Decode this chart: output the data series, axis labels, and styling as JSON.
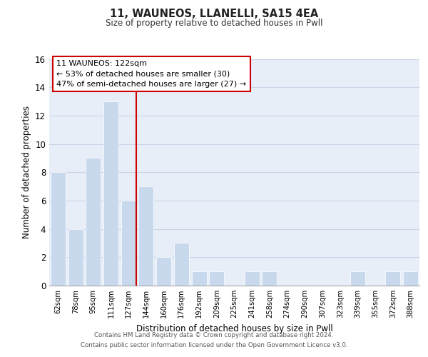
{
  "title": "11, WAUNEOS, LLANELLI, SA15 4EA",
  "subtitle": "Size of property relative to detached houses in Pwll",
  "xlabel": "Distribution of detached houses by size in Pwll",
  "ylabel": "Number of detached properties",
  "categories": [
    "62sqm",
    "78sqm",
    "95sqm",
    "111sqm",
    "127sqm",
    "144sqm",
    "160sqm",
    "176sqm",
    "192sqm",
    "209sqm",
    "225sqm",
    "241sqm",
    "258sqm",
    "274sqm",
    "290sqm",
    "307sqm",
    "323sqm",
    "339sqm",
    "355sqm",
    "372sqm",
    "388sqm"
  ],
  "values": [
    8,
    4,
    9,
    13,
    6,
    7,
    2,
    3,
    1,
    1,
    0,
    1,
    1,
    0,
    0,
    0,
    0,
    1,
    0,
    1,
    1
  ],
  "bar_color": "#c8d8ed",
  "bar_edge_color": "#ffffff",
  "vline_color": "#cc0000",
  "vline_x": 4.425,
  "annotation_line1": "11 WAUNEOS: 122sqm",
  "annotation_line2": "← 53% of detached houses are smaller (30)",
  "annotation_line3": "47% of semi-detached houses are larger (27) →",
  "annotation_box_facecolor": "#ffffff",
  "annotation_box_edgecolor": "#cc0000",
  "ylim": [
    0,
    16
  ],
  "yticks": [
    0,
    2,
    4,
    6,
    8,
    10,
    12,
    14,
    16
  ],
  "grid_color": "#c8d4e8",
  "background_color": "#e8eef8",
  "footer_line1": "Contains HM Land Registry data © Crown copyright and database right 2024.",
  "footer_line2": "Contains public sector information licensed under the Open Government Licence v3.0."
}
